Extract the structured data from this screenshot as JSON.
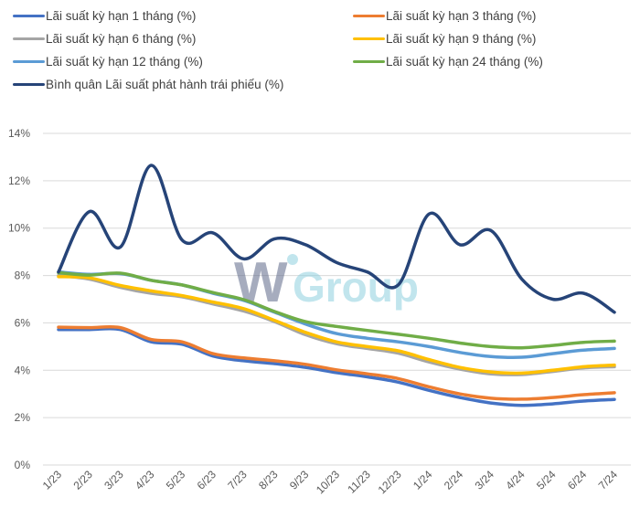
{
  "chart_data": {
    "type": "line",
    "title": "",
    "xlabel": "",
    "ylabel": "",
    "ylim": [
      0,
      14
    ],
    "y_ticks": [
      "0%",
      "2%",
      "4%",
      "6%",
      "8%",
      "10%",
      "12%",
      "14%"
    ],
    "y_tick_values": [
      0,
      2,
      4,
      6,
      8,
      10,
      12,
      14
    ],
    "grid": true,
    "legend_position": "top",
    "categories": [
      "1/23",
      "2/23",
      "3/23",
      "4/23",
      "5/23",
      "6/23",
      "7/23",
      "8/23",
      "9/23",
      "10/23",
      "11/23",
      "12/23",
      "1/24",
      "2/24",
      "3/24",
      "4/24",
      "5/24",
      "6/24",
      "7/24"
    ],
    "series": [
      {
        "name": "Lãi suất kỳ hạn 1 tháng (%)",
        "color": "#4472C4",
        "values": [
          5.72,
          5.72,
          5.72,
          5.2,
          5.1,
          4.6,
          4.4,
          4.28,
          4.12,
          3.9,
          3.72,
          3.5,
          3.15,
          2.85,
          2.62,
          2.52,
          2.58,
          2.7,
          2.77
        ]
      },
      {
        "name": "Lãi suất kỳ hạn 3 tháng (%)",
        "color": "#ED7D31",
        "values": [
          5.82,
          5.8,
          5.8,
          5.3,
          5.2,
          4.7,
          4.52,
          4.4,
          4.25,
          4.02,
          3.85,
          3.65,
          3.3,
          3.0,
          2.82,
          2.78,
          2.85,
          2.97,
          3.05
        ]
      },
      {
        "name": "Lãi suất kỳ hạn 6 tháng (%)",
        "color": "#A5A5A5",
        "values": [
          8.0,
          7.85,
          7.5,
          7.25,
          7.1,
          6.8,
          6.5,
          6.05,
          5.5,
          5.12,
          4.92,
          4.72,
          4.35,
          4.05,
          3.85,
          3.82,
          3.95,
          4.1,
          4.15
        ]
      },
      {
        "name": "Lãi suất kỳ hạn 9 tháng (%)",
        "color": "#FFC000",
        "values": [
          7.95,
          7.9,
          7.58,
          7.35,
          7.15,
          6.88,
          6.6,
          6.1,
          5.6,
          5.2,
          5.0,
          4.82,
          4.45,
          4.12,
          3.93,
          3.88,
          4.0,
          4.15,
          4.22
        ]
      },
      {
        "name": "Lãi suất kỳ hạn 12 tháng (%)",
        "color": "#5B9BD5",
        "values": [
          8.15,
          8.05,
          8.08,
          7.8,
          7.6,
          7.25,
          6.95,
          6.45,
          5.95,
          5.55,
          5.35,
          5.2,
          5.0,
          4.75,
          4.58,
          4.55,
          4.7,
          4.85,
          4.92
        ]
      },
      {
        "name": "Lãi suất kỳ hạn 24 tháng (%)",
        "color": "#70AD47",
        "values": [
          8.12,
          8.02,
          8.1,
          7.8,
          7.6,
          7.28,
          6.98,
          6.48,
          6.05,
          5.85,
          5.68,
          5.52,
          5.35,
          5.15,
          5.0,
          4.95,
          5.05,
          5.18,
          5.23
        ]
      },
      {
        "name": "Bình quân Lãi suất phát hành trái phiếu (%)",
        "color": "#264478",
        "values": [
          8.15,
          10.7,
          9.2,
          12.65,
          9.5,
          9.8,
          8.7,
          9.55,
          9.3,
          8.55,
          8.15,
          7.6,
          10.6,
          9.3,
          9.9,
          7.85,
          7.0,
          7.25,
          6.45
        ]
      }
    ]
  },
  "watermark": {
    "text_left": "W",
    "text_right": "Group"
  }
}
